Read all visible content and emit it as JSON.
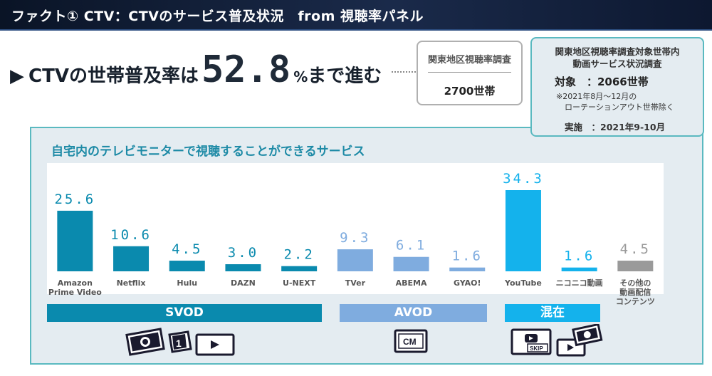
{
  "header": {
    "title": "ファクト① CTV：CTVのサービス普及状況　from 視聴率パネル"
  },
  "headline": {
    "prefix": "CTVの世帯普及率は",
    "value": "52.8",
    "percent": "%",
    "suffix": "まで進む"
  },
  "panel_box": {
    "title": "関東地区視聴率調査",
    "value": "2700世帯"
  },
  "survey_box": {
    "title_line1": "関東地区視聴率調査対象世帯内",
    "title_line2": "動画サービス状況調査",
    "target": "対象　：2066世帯",
    "note_line1": "※2021年8月～12月の",
    "note_line2": "ローテーションアウト世帯除く",
    "date": "実施　：2021年9-10月"
  },
  "chart_data": {
    "type": "bar",
    "title": "自宅内のテレビモニターで視聴することができるサービス",
    "categories": [
      "Amazon\nPrime Video",
      "Netflix",
      "Hulu",
      "DAZN",
      "U-NEXT",
      "TVer",
      "ABEMA",
      "GYAO!",
      "YouTube",
      "ニコニコ動画",
      "その他の\n動画配信\nコンテンツ"
    ],
    "values": [
      25.6,
      10.6,
      4.5,
      3.0,
      2.2,
      9.3,
      6.1,
      1.6,
      34.3,
      1.6,
      4.5
    ],
    "value_labels": [
      "25.6",
      "10.6",
      "4.5",
      "3.0",
      "2.2",
      "9.3",
      "6.1",
      "1.6",
      "34.3",
      "1.6",
      "4.5"
    ],
    "group": [
      "SVOD",
      "SVOD",
      "SVOD",
      "SVOD",
      "SVOD",
      "AVOD",
      "AVOD",
      "AVOD",
      "混在",
      "混在",
      "other"
    ],
    "ylim": [
      0,
      34.3
    ],
    "grid": false,
    "legend": "none"
  },
  "groups": {
    "svod": "SVOD",
    "avod": "AVOD",
    "mixed": "混在"
  },
  "icons": {
    "cm_label": "CM",
    "skip_label": "SKIP"
  },
  "colors": {
    "svod": "#0a8aae",
    "avod": "#7facdf",
    "mixed": "#14b2ec",
    "other": "#9a9a9a",
    "accent": "#1d8aa6"
  }
}
